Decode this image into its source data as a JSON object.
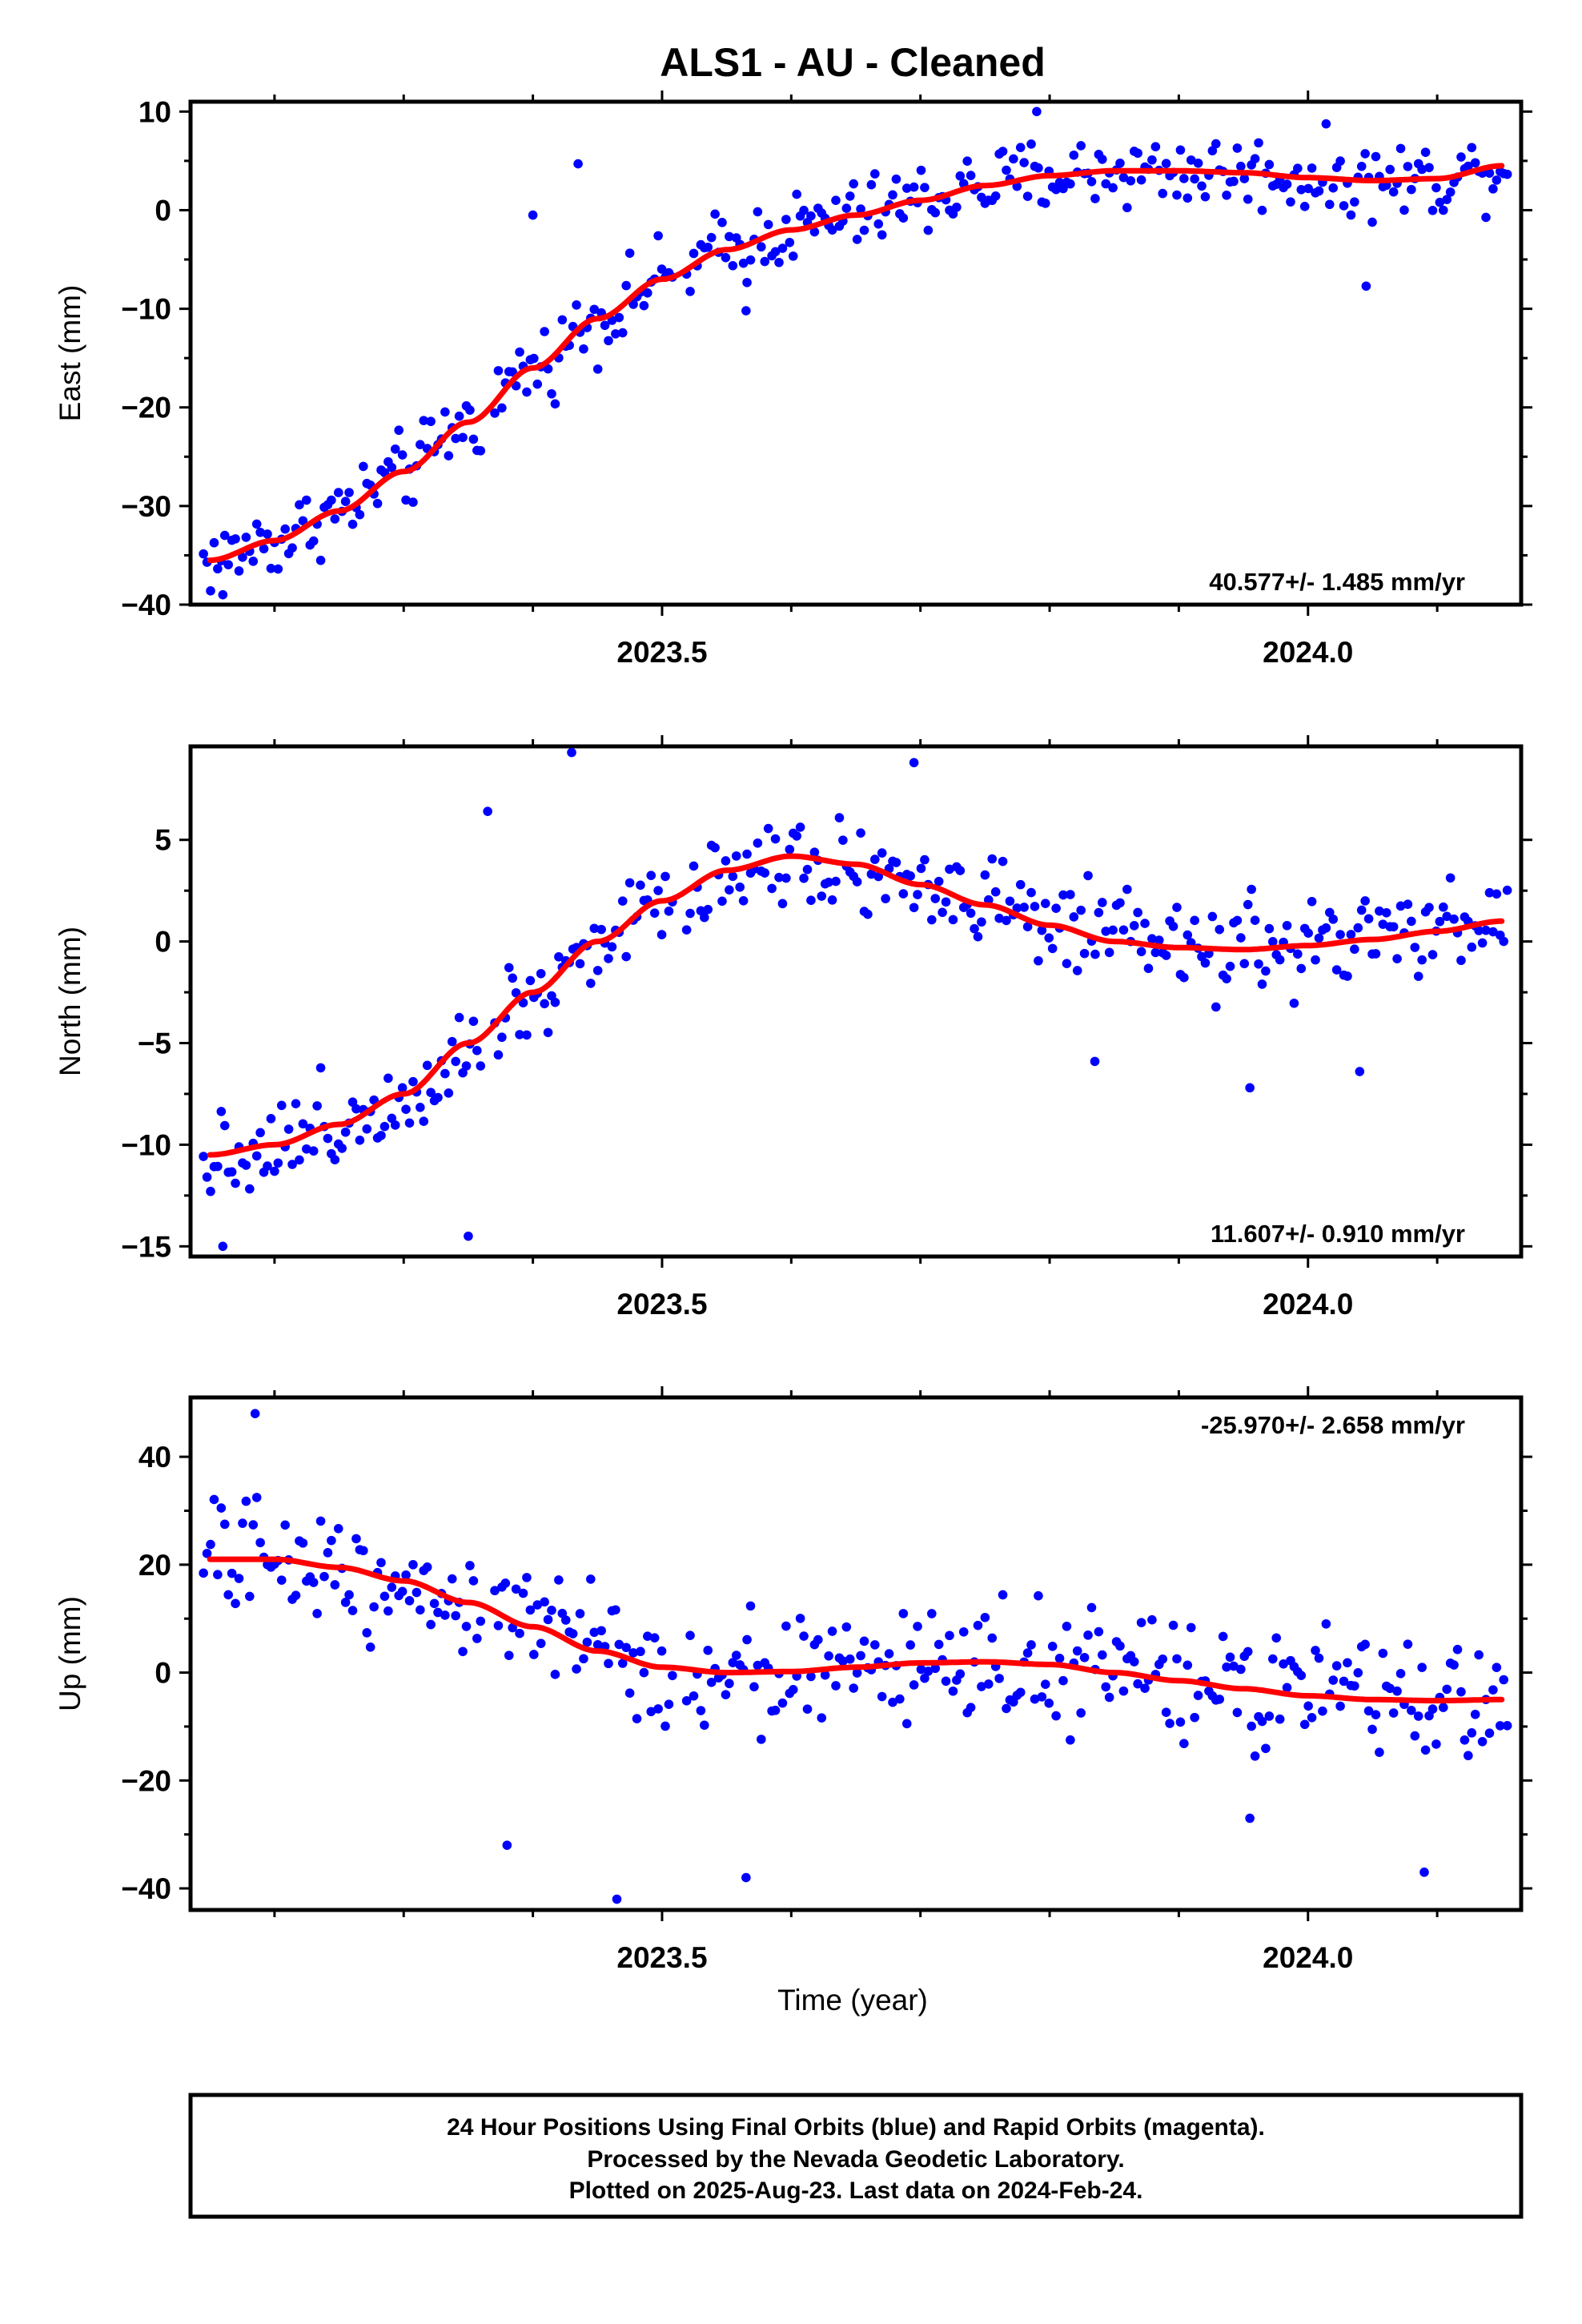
{
  "figure": {
    "title": "ALS1  - AU - Cleaned",
    "xlabel": "Time (year)",
    "footer_lines": [
      "24 Hour Positions Using Final Orbits (blue) and Rapid Orbits (magenta).",
      "Processed by the Nevada Geodetic Laboratory.",
      "Plotted on 2025-Aug-23. Last data on 2024-Feb-24."
    ]
  },
  "colors": {
    "points": "#0000ff",
    "fit": "#ff0000",
    "frame": "#000000"
  },
  "chart_data": [
    {
      "type": "scatter",
      "panel": "east",
      "ylabel": "East (mm)",
      "rate_label": "40.577+/- 1.485 mm/yr",
      "xlim": [
        2023.135,
        2024.165
      ],
      "ylim": [
        -40,
        11
      ],
      "xticks": [
        2023.5,
        2024.0
      ],
      "xtick_labels": [
        "2023.5",
        "2024.0"
      ],
      "yticks": [
        -40,
        -30,
        -20,
        -10,
        0,
        10
      ],
      "ytick_labels": [
        "−40",
        "−30",
        "−20",
        "−10",
        "0",
        "10"
      ],
      "fit_knots": [
        [
          2023.15,
          -35.5
        ],
        [
          2023.2,
          -33.5
        ],
        [
          2023.25,
          -30.5
        ],
        [
          2023.3,
          -26.5
        ],
        [
          2023.35,
          -21.5
        ],
        [
          2023.4,
          -16
        ],
        [
          2023.45,
          -11
        ],
        [
          2023.5,
          -7
        ],
        [
          2023.55,
          -4
        ],
        [
          2023.6,
          -2
        ],
        [
          2023.65,
          -0.5
        ],
        [
          2023.7,
          1
        ],
        [
          2023.75,
          2.5
        ],
        [
          2023.8,
          3.5
        ],
        [
          2023.85,
          4
        ],
        [
          2023.9,
          4
        ],
        [
          2023.95,
          3.8
        ],
        [
          2024.0,
          3.3
        ],
        [
          2024.05,
          3
        ],
        [
          2024.1,
          3.2
        ],
        [
          2024.15,
          4.5
        ]
      ],
      "noise": 2.8,
      "outliers": [
        [
          2023.4,
          -0.5
        ],
        [
          2023.435,
          4.7
        ],
        [
          2023.79,
          10
        ],
        [
          2024.045,
          -7.7
        ],
        [
          2023.16,
          -39
        ],
        [
          2023.565,
          -10.2
        ]
      ]
    },
    {
      "type": "scatter",
      "panel": "north",
      "ylabel": "North (mm)",
      "rate_label": "11.607+/- 0.910 mm/yr",
      "xlim": [
        2023.135,
        2024.165
      ],
      "ylim": [
        -15.5,
        9.6
      ],
      "xticks": [
        2023.5,
        2024.0
      ],
      "xtick_labels": [
        "2023.5",
        "2024.0"
      ],
      "yticks": [
        -15,
        -10,
        -5,
        0,
        5
      ],
      "ytick_labels": [
        "−15",
        "−10",
        "−5",
        "0",
        "5"
      ],
      "fit_knots": [
        [
          2023.15,
          -10.5
        ],
        [
          2023.2,
          -10
        ],
        [
          2023.25,
          -9
        ],
        [
          2023.3,
          -7.5
        ],
        [
          2023.35,
          -5
        ],
        [
          2023.4,
          -2.5
        ],
        [
          2023.45,
          0
        ],
        [
          2023.5,
          2
        ],
        [
          2023.55,
          3.5
        ],
        [
          2023.6,
          4.2
        ],
        [
          2023.65,
          3.8
        ],
        [
          2023.7,
          2.8
        ],
        [
          2023.75,
          1.8
        ],
        [
          2023.8,
          0.8
        ],
        [
          2023.85,
          0
        ],
        [
          2023.9,
          -0.3
        ],
        [
          2023.95,
          -0.4
        ],
        [
          2024.0,
          -0.2
        ],
        [
          2024.05,
          0.1
        ],
        [
          2024.1,
          0.5
        ],
        [
          2024.15,
          1
        ]
      ],
      "noise": 1.7,
      "outliers": [
        [
          2023.43,
          9.3
        ],
        [
          2023.695,
          8.8
        ],
        [
          2023.16,
          -15
        ],
        [
          2023.35,
          -14.5
        ],
        [
          2023.365,
          6.4
        ],
        [
          2023.835,
          -5.9
        ],
        [
          2023.955,
          -7.2
        ],
        [
          2024.04,
          -6.4
        ]
      ]
    },
    {
      "type": "scatter",
      "panel": "up",
      "ylabel": "Up (mm)",
      "rate_label": "-25.970+/- 2.658 mm/yr",
      "xlim": [
        2023.135,
        2024.165
      ],
      "ylim": [
        -44,
        51
      ],
      "xticks": [
        2023.5,
        2024.0
      ],
      "xtick_labels": [
        "2023.5",
        "2024.0"
      ],
      "yticks": [
        -40,
        -20,
        0,
        20,
        40
      ],
      "ytick_labels": [
        "−40",
        "−20",
        "0",
        "20",
        "40"
      ],
      "fit_knots": [
        [
          2023.15,
          21
        ],
        [
          2023.2,
          21
        ],
        [
          2023.25,
          19.5
        ],
        [
          2023.3,
          17
        ],
        [
          2023.35,
          13
        ],
        [
          2023.4,
          8.5
        ],
        [
          2023.45,
          4
        ],
        [
          2023.5,
          1
        ],
        [
          2023.55,
          0
        ],
        [
          2023.6,
          0.2
        ],
        [
          2023.65,
          1
        ],
        [
          2023.7,
          1.8
        ],
        [
          2023.75,
          2
        ],
        [
          2023.8,
          1.5
        ],
        [
          2023.85,
          0
        ],
        [
          2023.9,
          -1.5
        ],
        [
          2023.95,
          -3
        ],
        [
          2024.0,
          -4.3
        ],
        [
          2024.05,
          -5
        ],
        [
          2024.1,
          -5.2
        ],
        [
          2024.15,
          -5
        ]
      ],
      "noise": 8,
      "outliers": [
        [
          2023.185,
          48
        ],
        [
          2023.38,
          -32
        ],
        [
          2023.465,
          -42
        ],
        [
          2023.565,
          -38
        ],
        [
          2023.955,
          -27
        ],
        [
          2024.09,
          -37
        ]
      ]
    }
  ]
}
